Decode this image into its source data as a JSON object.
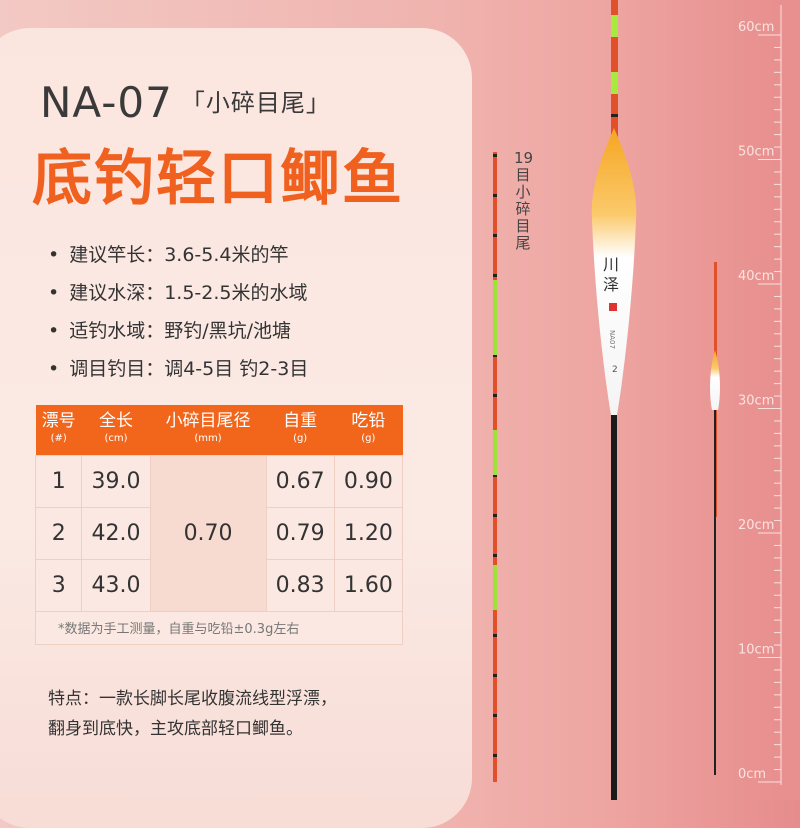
{
  "model": "NA-07",
  "model_sub": "「小碎目尾」",
  "headline": "底钓轻口鲫鱼",
  "bullets": [
    "建议竿长：3.6-5.4米的竿",
    "建议水深：1.5-2.5米的水域",
    "适钓水域：野钓/黑坑/池塘",
    "调目钓目：调4-5目 钓2-3目"
  ],
  "table": {
    "headers": [
      {
        "label": "漂号",
        "unit": "(#)"
      },
      {
        "label": "全长",
        "unit": "(cm)"
      },
      {
        "label": "小碎目尾径",
        "unit": "(mm)"
      },
      {
        "label": "自重",
        "unit": "(g)"
      },
      {
        "label": "吃铅",
        "unit": "(g)"
      }
    ],
    "rows": [
      [
        "1",
        "39.0",
        "0.67",
        "0.90"
      ],
      [
        "2",
        "42.0",
        "0.79",
        "1.20"
      ],
      [
        "3",
        "43.0",
        "0.83",
        "1.60"
      ]
    ],
    "shared_diameter": "0.70",
    "note": "*数据为手工测量，自重与吃铅±0.3g左右"
  },
  "features": [
    "特点：一款长脚长尾收腹流线型浮漂，",
    "翻身到底快，主攻底部轻口鲫鱼。"
  ],
  "vertical_label": "19目小碎目尾",
  "float_brand": "川泽",
  "float_model": "NA07",
  "float_number": "2",
  "ruler_labels": [
    "60cm",
    "50cm",
    "40cm",
    "30cm",
    "20cm",
    "10cm",
    "0cm"
  ],
  "colors": {
    "accent": "#f2661c",
    "headline": "#f0611f"
  }
}
